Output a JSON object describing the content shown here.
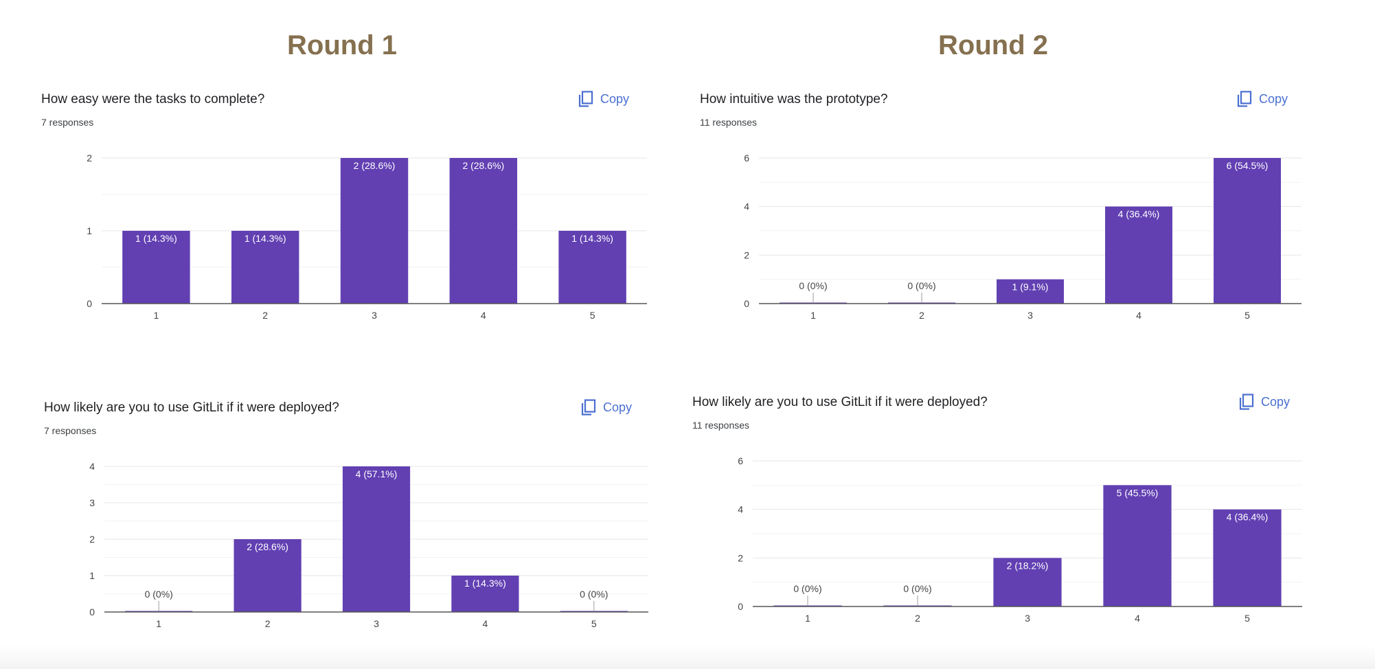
{
  "rounds": [
    {
      "title": "Round 1"
    },
    {
      "title": "Round 2"
    }
  ],
  "copy_label": "Copy",
  "colors": {
    "bar": "#6240b2",
    "heading": "#85704f",
    "copy": "#4a6fd1"
  },
  "icons": {
    "copy": "copy-icon"
  },
  "panels": [
    {
      "question": "How easy were the tasks to complete?",
      "responses": "7 responses"
    },
    {
      "question": "How intuitive was the prototype?",
      "responses": "11 responses"
    },
    {
      "question": "How likely are you to use GitLit if it were deployed?",
      "responses": "7 responses"
    },
    {
      "question": "How likely are you to use GitLit if it were deployed?",
      "responses": "11 responses"
    }
  ],
  "chart_data": [
    {
      "type": "bar",
      "categories": [
        "1",
        "2",
        "3",
        "4",
        "5"
      ],
      "values": [
        1,
        1,
        2,
        2,
        1
      ],
      "data_labels": [
        "1 (14.3%)",
        "1 (14.3%)",
        "2 (28.6%)",
        "2 (28.6%)",
        "1 (14.3%)"
      ],
      "yticks": [
        0,
        1,
        2
      ],
      "ylim": [
        0,
        2
      ],
      "grid": true
    },
    {
      "type": "bar",
      "categories": [
        "1",
        "2",
        "3",
        "4",
        "5"
      ],
      "values": [
        0,
        0,
        1,
        4,
        6
      ],
      "data_labels": [
        "0 (0%)",
        "0 (0%)",
        "1 (9.1%)",
        "4 (36.4%)",
        "6 (54.5%)"
      ],
      "yticks": [
        0,
        2,
        4,
        6
      ],
      "ylim": [
        0,
        6
      ],
      "grid": true
    },
    {
      "type": "bar",
      "categories": [
        "1",
        "2",
        "3",
        "4",
        "5"
      ],
      "values": [
        0,
        2,
        4,
        1,
        0
      ],
      "data_labels": [
        "0 (0%)",
        "2 (28.6%)",
        "4 (57.1%)",
        "1 (14.3%)",
        "0 (0%)"
      ],
      "yticks": [
        0,
        1,
        2,
        3,
        4
      ],
      "ylim": [
        0,
        4
      ],
      "grid": true
    },
    {
      "type": "bar",
      "categories": [
        "1",
        "2",
        "3",
        "4",
        "5"
      ],
      "values": [
        0,
        0,
        2,
        5,
        4
      ],
      "data_labels": [
        "0 (0%)",
        "0 (0%)",
        "2 (18.2%)",
        "5 (45.5%)",
        "4 (36.4%)"
      ],
      "yticks": [
        0,
        2,
        4,
        6
      ],
      "ylim": [
        0,
        6
      ],
      "grid": true
    }
  ]
}
